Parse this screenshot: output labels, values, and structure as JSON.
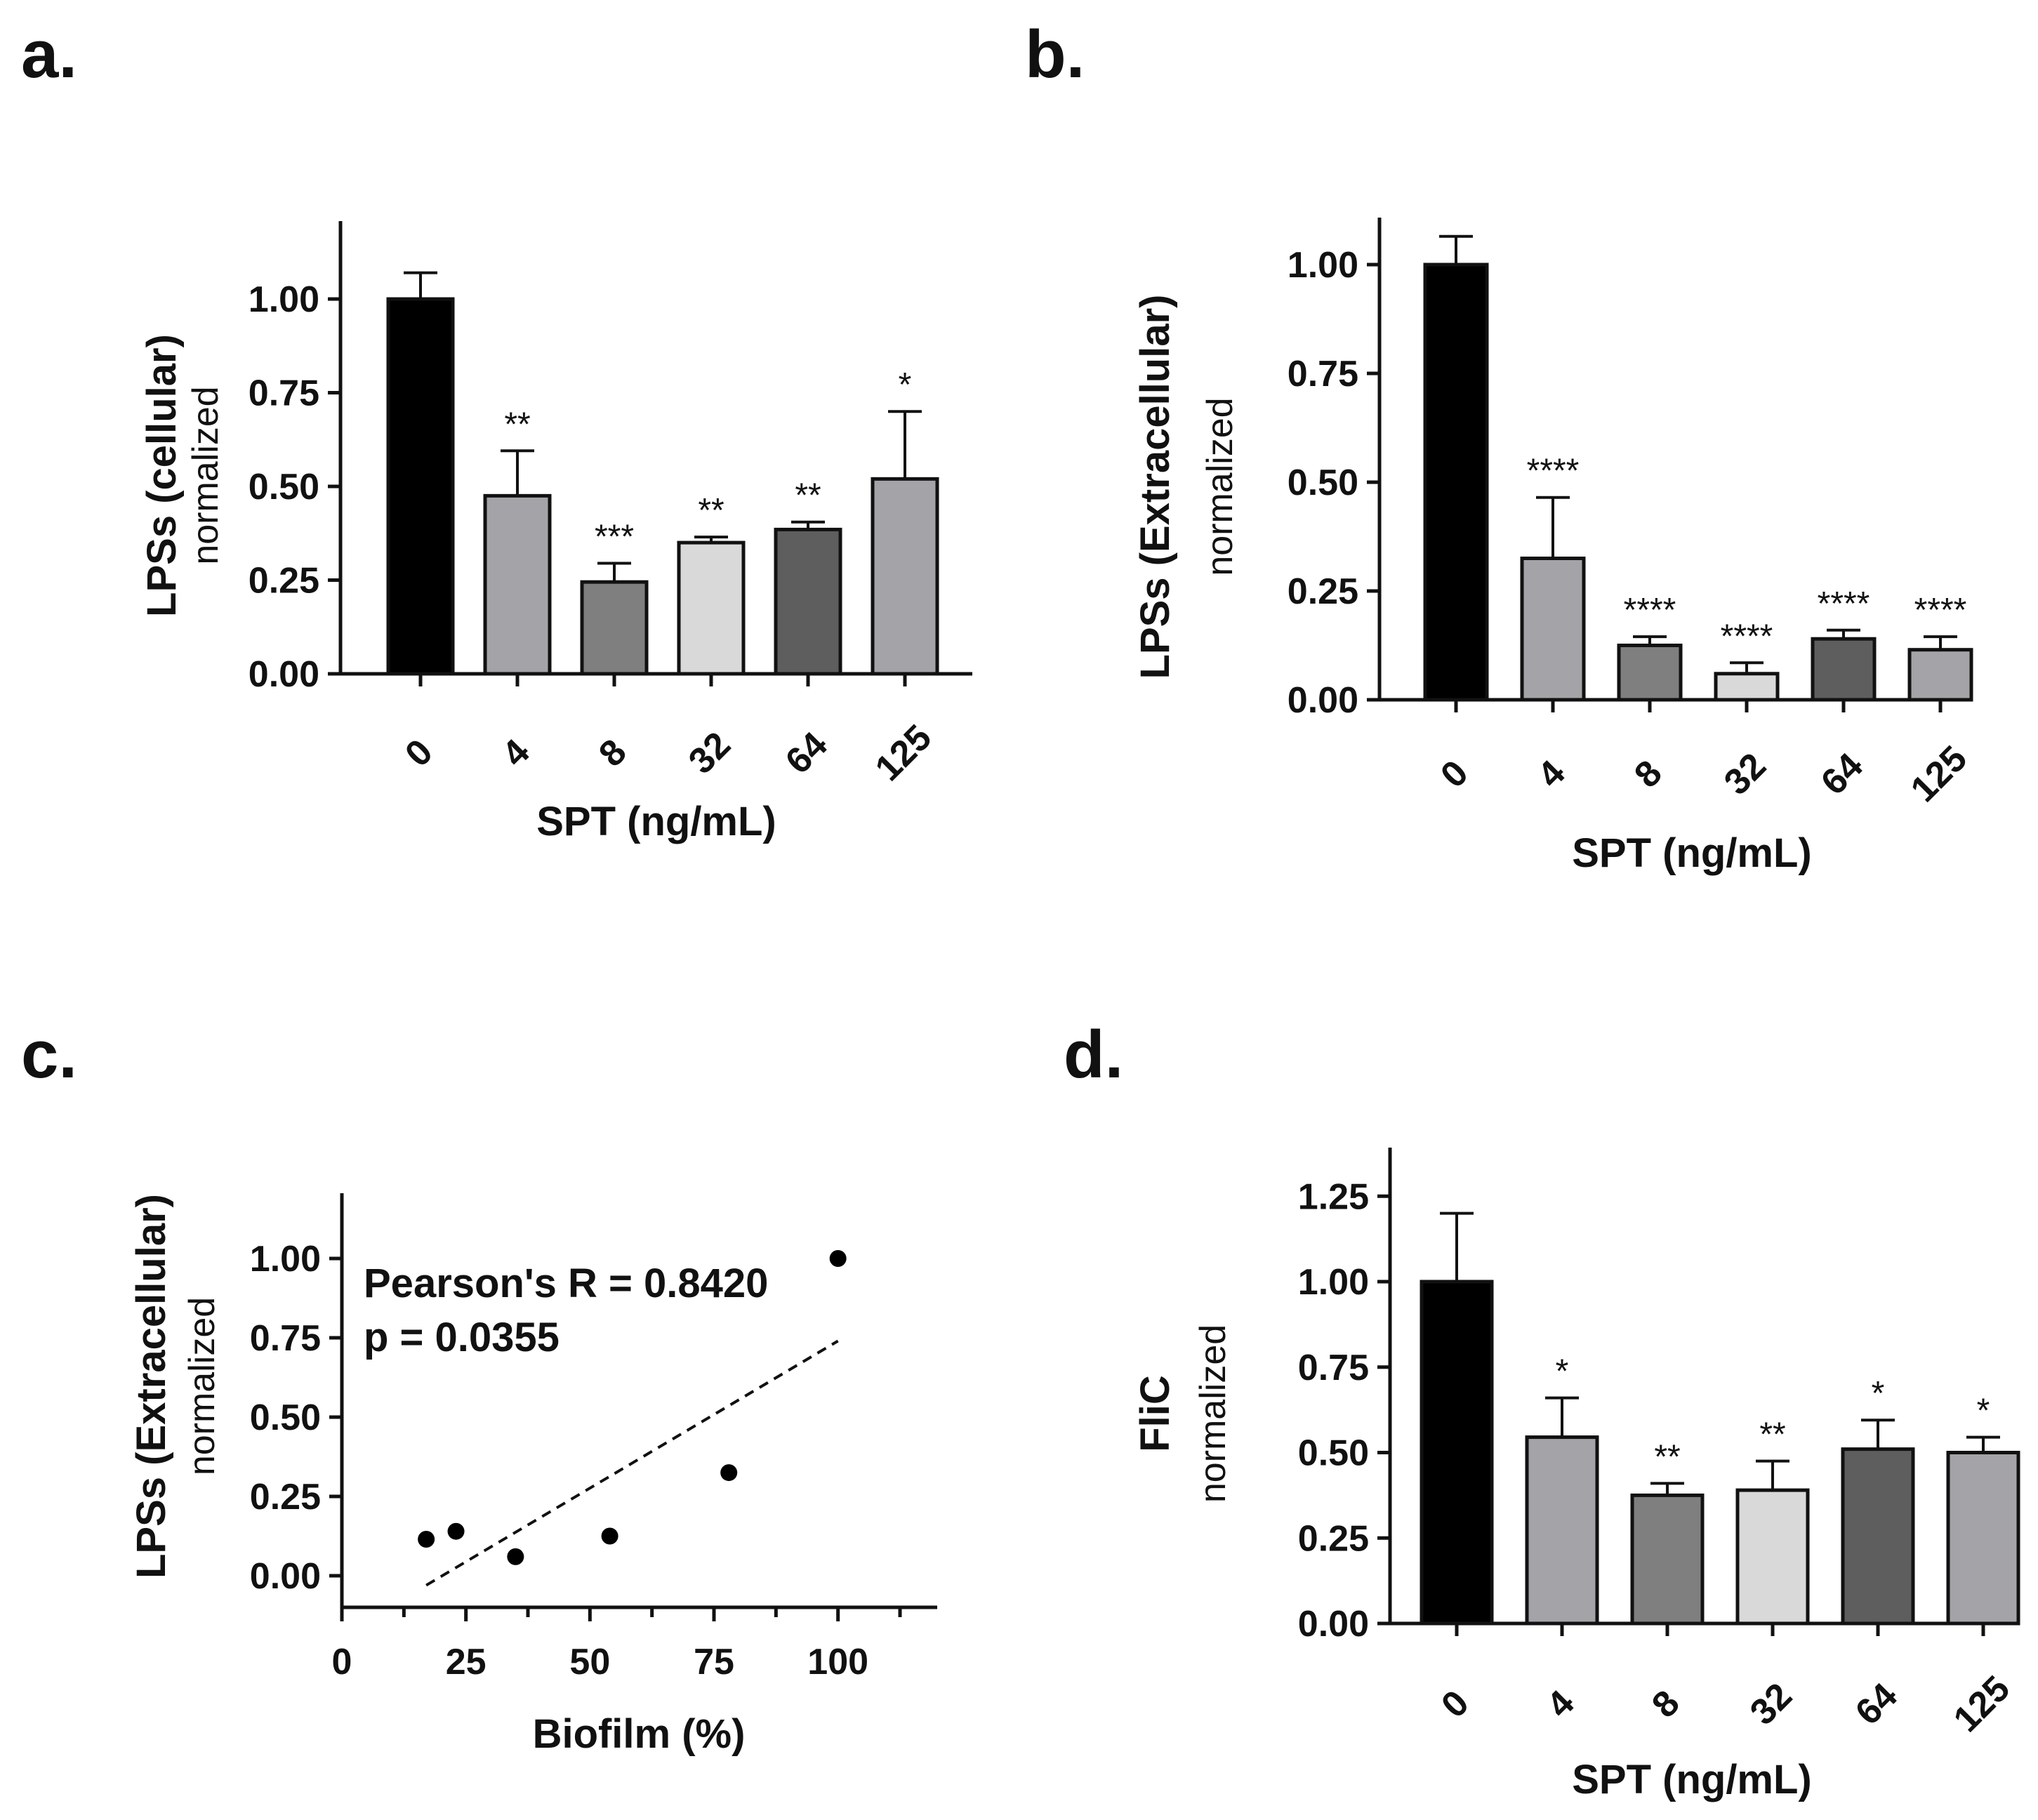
{
  "figure": {
    "panels": [
      "a.",
      "b.",
      "c.",
      "d."
    ]
  },
  "colors": {
    "axis": "#111111",
    "bar_0": "#000000",
    "bar_4": "#a4a4a8",
    "bar_8": "#7f7f7f",
    "bar_32": "#d9d9d9",
    "bar_64": "#5e5e5e",
    "bar_125": "#a4a4a8"
  },
  "chart_data": [
    {
      "id": "a",
      "type": "bar",
      "panel_label": "a.",
      "ylabel": "LPSs (cellular)",
      "ylabel_sub": "normalized",
      "xlabel": "SPT (ng/mL)",
      "categories": [
        "0",
        "4",
        "8",
        "32",
        "64",
        "125"
      ],
      "values": [
        1.0,
        0.475,
        0.245,
        0.35,
        0.385,
        0.52
      ],
      "errors": [
        0.07,
        0.12,
        0.05,
        0.015,
        0.02,
        0.18
      ],
      "significance": [
        "",
        "**",
        "***",
        "**",
        "**",
        "*"
      ],
      "ylim": [
        0,
        1.2
      ],
      "yticks": [
        "0.00",
        "0.25",
        "0.50",
        "0.75",
        "1.00"
      ],
      "ytick_values": [
        0,
        0.25,
        0.5,
        0.75,
        1.0
      ]
    },
    {
      "id": "b",
      "type": "bar",
      "panel_label": "b.",
      "ylabel": "LPSs (Extracellular)",
      "ylabel_sub": "normalized",
      "xlabel": "SPT (ng/mL)",
      "categories": [
        "0",
        "4",
        "8",
        "32",
        "64",
        "125"
      ],
      "values": [
        1.0,
        0.325,
        0.125,
        0.06,
        0.14,
        0.115
      ],
      "errors": [
        0.065,
        0.14,
        0.02,
        0.025,
        0.02,
        0.03
      ],
      "significance": [
        "",
        "****",
        "****",
        "****",
        "****",
        "****"
      ],
      "ylim": [
        0,
        1.1
      ],
      "yticks": [
        "0.00",
        "0.25",
        "0.50",
        "0.75",
        "1.00"
      ],
      "ytick_values": [
        0,
        0.25,
        0.5,
        0.75,
        1.0
      ]
    },
    {
      "id": "c",
      "type": "scatter",
      "panel_label": "c.",
      "ylabel": "LPSs (Extracellular)",
      "ylabel_sub": "normalized",
      "xlabel": "Biofilm (%)",
      "points": [
        {
          "x": 17,
          "y": 0.115
        },
        {
          "x": 23,
          "y": 0.14
        },
        {
          "x": 35,
          "y": 0.06
        },
        {
          "x": 54,
          "y": 0.125
        },
        {
          "x": 78,
          "y": 0.325
        },
        {
          "x": 100,
          "y": 1.0
        }
      ],
      "fit_line": [
        {
          "x": 17,
          "y": -0.03
        },
        {
          "x": 100,
          "y": 0.74
        }
      ],
      "annotation_r": "Pearson's R = 0.8420",
      "annotation_p": "p = 0.0355",
      "xlim": [
        0,
        120
      ],
      "ylim": [
        -0.1,
        1.2
      ],
      "xticks": [
        "0",
        "25",
        "50",
        "75",
        "100"
      ],
      "xtick_values": [
        0,
        25,
        50,
        75,
        100
      ],
      "yticks": [
        "0.00",
        "0.25",
        "0.50",
        "0.75",
        "1.00"
      ],
      "ytick_values": [
        0,
        0.25,
        0.5,
        0.75,
        1.0
      ]
    },
    {
      "id": "d",
      "type": "bar",
      "panel_label": "d.",
      "ylabel": "FliC",
      "ylabel_sub": "normalized",
      "xlabel": "SPT (ng/mL)",
      "categories": [
        "0",
        "4",
        "8",
        "32",
        "64",
        "125"
      ],
      "values": [
        1.0,
        0.545,
        0.375,
        0.39,
        0.51,
        0.5
      ],
      "errors": [
        0.2,
        0.115,
        0.035,
        0.085,
        0.085,
        0.045
      ],
      "significance": [
        "",
        "*",
        "**",
        "**",
        "*",
        "*"
      ],
      "ylim": [
        0,
        1.4
      ],
      "yticks": [
        "0.00",
        "0.25",
        "0.50",
        "0.75",
        "1.00",
        "1.25"
      ],
      "ytick_values": [
        0,
        0.25,
        0.5,
        0.75,
        1.0,
        1.25
      ]
    }
  ]
}
